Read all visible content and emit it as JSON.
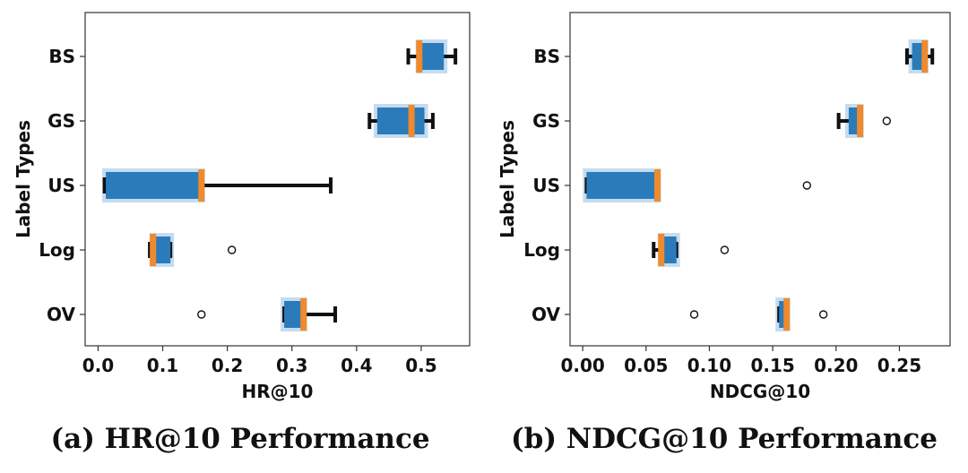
{
  "colors": {
    "box_fill": "#2b7bba",
    "box_halo": "#c5dcf0",
    "median": "#f08a2c",
    "whisker": "#111111",
    "axes": "#333333"
  },
  "chart_data": [
    {
      "type": "box",
      "orientation": "horizontal",
      "caption": "(a) HR@10 Performance",
      "xlabel": "HR@10",
      "ylabel": "Label Types",
      "xlim": [
        -0.02,
        0.575
      ],
      "xticks": [
        0.0,
        0.1,
        0.2,
        0.3,
        0.4,
        0.5
      ],
      "xtick_labels": [
        "0.0",
        "0.1",
        "0.2",
        "0.3",
        "0.4",
        "0.5"
      ],
      "categories": [
        "BS",
        "GS",
        "US",
        "Log",
        "OV"
      ],
      "boxes": [
        {
          "label": "BS",
          "whislo": 0.48,
          "q1": 0.497,
          "med": 0.497,
          "q3": 0.535,
          "whishi": 0.553,
          "fliers": []
        },
        {
          "label": "GS",
          "whislo": 0.42,
          "q1": 0.432,
          "med": 0.485,
          "q3": 0.505,
          "whishi": 0.518,
          "fliers": []
        },
        {
          "label": "US",
          "whislo": 0.01,
          "q1": 0.012,
          "med": 0.16,
          "q3": 0.16,
          "whishi": 0.36,
          "fliers": []
        },
        {
          "label": "Log",
          "whislo": 0.08,
          "q1": 0.085,
          "med": 0.085,
          "q3": 0.112,
          "whishi": 0.112,
          "fliers": [
            0.207
          ]
        },
        {
          "label": "OV",
          "whislo": 0.288,
          "q1": 0.288,
          "med": 0.318,
          "q3": 0.318,
          "whishi": 0.367,
          "fliers": [
            0.16
          ]
        }
      ]
    },
    {
      "type": "box",
      "orientation": "horizontal",
      "caption": "(b) NDCG@10 Performance",
      "xlabel": "NDCG@10",
      "ylabel": "Label Types",
      "xlim": [
        -0.01,
        0.29
      ],
      "xticks": [
        0.0,
        0.05,
        0.1,
        0.15,
        0.2,
        0.25
      ],
      "xtick_labels": [
        "0.00",
        "0.05",
        "0.10",
        "0.15",
        "0.20",
        "0.25"
      ],
      "categories": [
        "BS",
        "GS",
        "US",
        "Log",
        "OV"
      ],
      "boxes": [
        {
          "label": "BS",
          "whislo": 0.256,
          "q1": 0.26,
          "med": 0.27,
          "q3": 0.27,
          "whishi": 0.276,
          "fliers": []
        },
        {
          "label": "GS",
          "whislo": 0.202,
          "q1": 0.21,
          "med": 0.219,
          "q3": 0.219,
          "whishi": 0.219,
          "fliers": [
            0.24
          ]
        },
        {
          "label": "US",
          "whislo": 0.003,
          "q1": 0.003,
          "med": 0.059,
          "q3": 0.059,
          "whishi": 0.059,
          "fliers": [
            0.177
          ]
        },
        {
          "label": "Log",
          "whislo": 0.056,
          "q1": 0.062,
          "med": 0.062,
          "q3": 0.074,
          "whishi": 0.074,
          "fliers": [
            0.112
          ]
        },
        {
          "label": "OV",
          "whislo": 0.155,
          "q1": 0.155,
          "med": 0.161,
          "q3": 0.161,
          "whishi": 0.161,
          "fliers": [
            0.088,
            0.19
          ]
        }
      ]
    }
  ]
}
